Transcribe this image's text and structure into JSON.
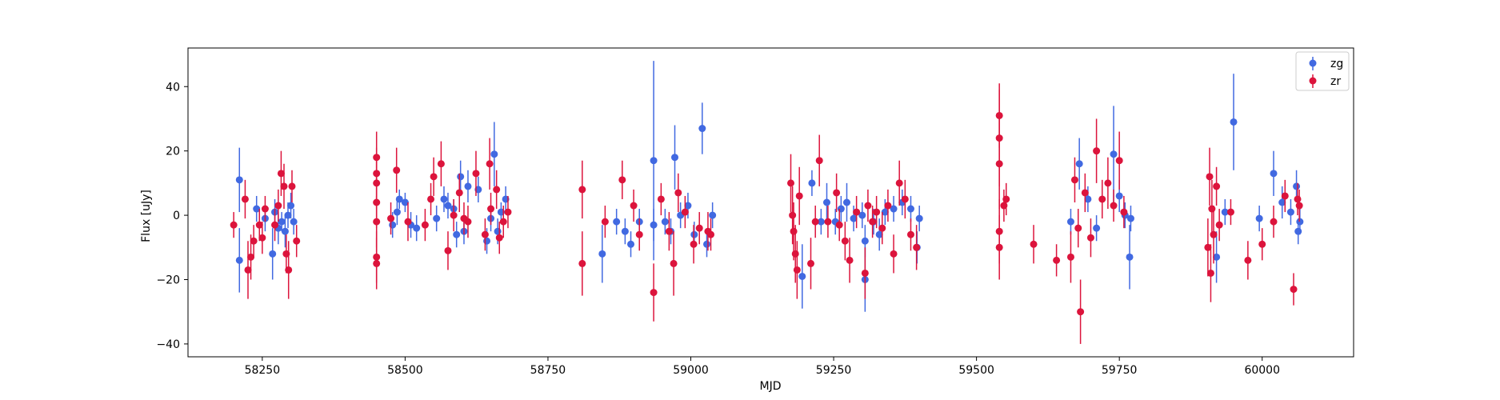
{
  "chart_data": {
    "type": "scatter",
    "title": "",
    "xlabel": "MJD",
    "ylabel": "Flux [uJy]",
    "xlim": [
      58120,
      60160
    ],
    "ylim": [
      -44,
      52
    ],
    "xticks": [
      58250,
      58500,
      58750,
      59000,
      59250,
      59500,
      59750,
      60000
    ],
    "yticks": [
      -40,
      -20,
      0,
      20,
      40
    ],
    "grid": false,
    "legend_position": "top-right",
    "series": [
      {
        "name": "zg",
        "color": "#4169e1",
        "points": [
          [
            58210,
            11,
            10
          ],
          [
            58210,
            -14,
            10
          ],
          [
            58240,
            2,
            4
          ],
          [
            58255,
            -1,
            4
          ],
          [
            58268,
            -12,
            8
          ],
          [
            58272,
            1,
            4
          ],
          [
            58278,
            -4,
            5
          ],
          [
            58284,
            -2,
            3
          ],
          [
            58290,
            -5,
            5
          ],
          [
            58295,
            0,
            4
          ],
          [
            58300,
            3,
            4
          ],
          [
            58305,
            -2,
            4
          ],
          [
            58478,
            -3,
            4
          ],
          [
            58486,
            1,
            4
          ],
          [
            58490,
            5,
            3
          ],
          [
            58500,
            4,
            3
          ],
          [
            58510,
            -3,
            4
          ],
          [
            58520,
            -4,
            4
          ],
          [
            58555,
            -1,
            4
          ],
          [
            58568,
            5,
            4
          ],
          [
            58575,
            3,
            4
          ],
          [
            58585,
            2,
            3
          ],
          [
            58590,
            -6,
            4
          ],
          [
            58597,
            12,
            5
          ],
          [
            58603,
            -5,
            4
          ],
          [
            58610,
            9,
            5
          ],
          [
            58628,
            8,
            4
          ],
          [
            58643,
            -8,
            4
          ],
          [
            58650,
            -1,
            4
          ],
          [
            58656,
            19,
            10
          ],
          [
            58662,
            -5,
            4
          ],
          [
            58668,
            1,
            3
          ],
          [
            58676,
            5,
            4
          ],
          [
            58845,
            -12,
            9
          ],
          [
            58870,
            -2,
            4
          ],
          [
            58885,
            -5,
            4
          ],
          [
            58895,
            -9,
            4
          ],
          [
            58910,
            -2,
            4
          ],
          [
            58935,
            17,
            31
          ],
          [
            58935,
            -3,
            5
          ],
          [
            58955,
            -2,
            4
          ],
          [
            58965,
            -5,
            4
          ],
          [
            58972,
            18,
            10
          ],
          [
            58982,
            0,
            4
          ],
          [
            58995,
            3,
            4
          ],
          [
            59006,
            -6,
            4
          ],
          [
            59020,
            27,
            8
          ],
          [
            59028,
            -9,
            4
          ],
          [
            59038,
            0,
            4
          ],
          [
            59195,
            -19,
            10
          ],
          [
            59212,
            10,
            4
          ],
          [
            59228,
            -2,
            4
          ],
          [
            59238,
            4,
            6
          ],
          [
            59253,
            -2,
            4
          ],
          [
            59263,
            2,
            4
          ],
          [
            59273,
            4,
            6
          ],
          [
            59285,
            -1,
            4
          ],
          [
            59300,
            0,
            4
          ],
          [
            59305,
            -20,
            10
          ],
          [
            59305,
            -8,
            5
          ],
          [
            59320,
            -2,
            4
          ],
          [
            59330,
            -6,
            5
          ],
          [
            59340,
            1,
            4
          ],
          [
            59355,
            2,
            4
          ],
          [
            59370,
            4,
            4
          ],
          [
            59385,
            2,
            4
          ],
          [
            59396,
            -10,
            5
          ],
          [
            59400,
            -1,
            4
          ],
          [
            59665,
            -2,
            4
          ],
          [
            59680,
            16,
            8
          ],
          [
            59695,
            5,
            4
          ],
          [
            59710,
            -4,
            4
          ],
          [
            59740,
            19,
            15
          ],
          [
            59750,
            6,
            5
          ],
          [
            59760,
            0,
            4
          ],
          [
            59768,
            -13,
            10
          ],
          [
            59770,
            -1,
            4
          ],
          [
            59920,
            -13,
            8
          ],
          [
            59935,
            1,
            4
          ],
          [
            59950,
            29,
            15
          ],
          [
            59995,
            -1,
            4
          ],
          [
            60020,
            13,
            7
          ],
          [
            60035,
            4,
            5
          ],
          [
            60050,
            1,
            4
          ],
          [
            60060,
            9,
            5
          ],
          [
            60063,
            -5,
            4
          ],
          [
            60066,
            -2,
            4
          ]
        ]
      },
      {
        "name": "zr",
        "color": "#dc143c",
        "points": [
          [
            58200,
            -3,
            4
          ],
          [
            58220,
            5,
            6
          ],
          [
            58225,
            -17,
            9
          ],
          [
            58230,
            -13,
            7
          ],
          [
            58235,
            -8,
            5
          ],
          [
            58245,
            -3,
            5
          ],
          [
            58250,
            -7,
            5
          ],
          [
            58255,
            2,
            4
          ],
          [
            58272,
            -3,
            5
          ],
          [
            58278,
            3,
            5
          ],
          [
            58283,
            13,
            7
          ],
          [
            58288,
            9,
            7
          ],
          [
            58292,
            -12,
            6
          ],
          [
            58296,
            -17,
            9
          ],
          [
            58302,
            9,
            5
          ],
          [
            58310,
            -8,
            5
          ],
          [
            58450,
            18,
            8
          ],
          [
            58450,
            13,
            8
          ],
          [
            58450,
            10,
            8
          ],
          [
            58450,
            4,
            8
          ],
          [
            58450,
            -2,
            8
          ],
          [
            58450,
            -13,
            8
          ],
          [
            58450,
            -15,
            8
          ],
          [
            58475,
            -1,
            5
          ],
          [
            58485,
            14,
            7
          ],
          [
            58505,
            -2,
            6
          ],
          [
            58535,
            -3,
            5
          ],
          [
            58545,
            5,
            5
          ],
          [
            58550,
            12,
            6
          ],
          [
            58563,
            16,
            7
          ],
          [
            58575,
            -11,
            6
          ],
          [
            58585,
            0,
            5
          ],
          [
            58595,
            7,
            6
          ],
          [
            58603,
            -1,
            5
          ],
          [
            58610,
            -2,
            5
          ],
          [
            58624,
            13,
            7
          ],
          [
            58640,
            -6,
            5
          ],
          [
            58648,
            16,
            8
          ],
          [
            58650,
            2,
            5
          ],
          [
            58660,
            8,
            6
          ],
          [
            58665,
            -7,
            5
          ],
          [
            58672,
            -2,
            5
          ],
          [
            58680,
            1,
            5
          ],
          [
            58810,
            8,
            9
          ],
          [
            58810,
            -15,
            10
          ],
          [
            58850,
            -2,
            5
          ],
          [
            58880,
            11,
            6
          ],
          [
            58900,
            3,
            5
          ],
          [
            58910,
            -6,
            5
          ],
          [
            58935,
            -24,
            9
          ],
          [
            58948,
            5,
            5
          ],
          [
            58962,
            -5,
            6
          ],
          [
            58970,
            -15,
            10
          ],
          [
            58978,
            7,
            6
          ],
          [
            58990,
            1,
            5
          ],
          [
            59005,
            -9,
            6
          ],
          [
            59015,
            -4,
            5
          ],
          [
            59030,
            -5,
            6
          ],
          [
            59035,
            -6,
            5
          ],
          [
            59175,
            10,
            9
          ],
          [
            59178,
            0,
            9
          ],
          [
            59180,
            -5,
            9
          ],
          [
            59183,
            -12,
            9
          ],
          [
            59186,
            -17,
            9
          ],
          [
            59190,
            6,
            9
          ],
          [
            59210,
            -15,
            8
          ],
          [
            59218,
            -2,
            5
          ],
          [
            59225,
            17,
            8
          ],
          [
            59240,
            -2,
            5
          ],
          [
            59255,
            7,
            6
          ],
          [
            59260,
            -3,
            5
          ],
          [
            59270,
            -8,
            6
          ],
          [
            59278,
            -14,
            7
          ],
          [
            59290,
            1,
            5
          ],
          [
            59305,
            -18,
            8
          ],
          [
            59310,
            3,
            5
          ],
          [
            59318,
            -2,
            5
          ],
          [
            59325,
            1,
            5
          ],
          [
            59335,
            -4,
            5
          ],
          [
            59345,
            3,
            5
          ],
          [
            59355,
            -12,
            6
          ],
          [
            59365,
            10,
            7
          ],
          [
            59375,
            5,
            6
          ],
          [
            59385,
            -6,
            5
          ],
          [
            59395,
            -10,
            7
          ],
          [
            59540,
            24,
            15
          ],
          [
            59540,
            16,
            14
          ],
          [
            59540,
            31,
            10
          ],
          [
            59540,
            -5,
            10
          ],
          [
            59540,
            -10,
            10
          ],
          [
            59548,
            3,
            5
          ],
          [
            59552,
            5,
            5
          ],
          [
            59600,
            -9,
            6
          ],
          [
            59640,
            -14,
            5
          ],
          [
            59665,
            -13,
            8
          ],
          [
            59672,
            11,
            7
          ],
          [
            59678,
            -4,
            6
          ],
          [
            59682,
            -30,
            10
          ],
          [
            59690,
            7,
            6
          ],
          [
            59700,
            -7,
            6
          ],
          [
            59710,
            20,
            10
          ],
          [
            59720,
            5,
            6
          ],
          [
            59730,
            10,
            8
          ],
          [
            59740,
            3,
            5
          ],
          [
            59750,
            17,
            9
          ],
          [
            59758,
            1,
            5
          ],
          [
            59905,
            -10,
            9
          ],
          [
            59908,
            12,
            9
          ],
          [
            59910,
            -18,
            9
          ],
          [
            59912,
            2,
            9
          ],
          [
            59915,
            -6,
            9
          ],
          [
            59920,
            9,
            6
          ],
          [
            59925,
            -3,
            5
          ],
          [
            59945,
            1,
            4
          ],
          [
            59975,
            -14,
            6
          ],
          [
            60000,
            -9,
            5
          ],
          [
            60020,
            -2,
            5
          ],
          [
            60040,
            6,
            5
          ],
          [
            60055,
            -23,
            5
          ],
          [
            60062,
            5,
            5
          ],
          [
            60065,
            3,
            5
          ]
        ]
      }
    ]
  }
}
